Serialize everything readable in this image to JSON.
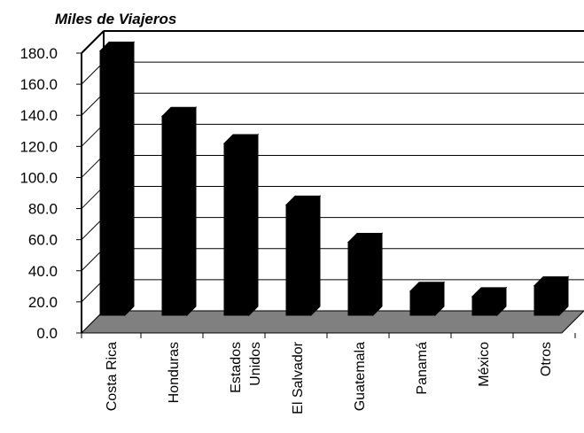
{
  "chart_data": {
    "type": "bar",
    "ylabel": "Miles de Viajeros",
    "xlabel": "",
    "categories": [
      [
        "Costa Rica"
      ],
      [
        "Honduras"
      ],
      [
        "Estados",
        "Unidos"
      ],
      [
        "El Salvador"
      ],
      [
        "Guatemala"
      ],
      [
        "Panamá"
      ],
      [
        "México"
      ],
      [
        "Otros"
      ]
    ],
    "values": [
      170.0,
      128.0,
      110.5,
      71.0,
      47.0,
      15.5,
      12.0,
      19.0
    ],
    "ylim": [
      0,
      180
    ],
    "yticks": [
      "0.0",
      "20.0",
      "40.0",
      "60.0",
      "80.0",
      "100.0",
      "120.0",
      "140.0",
      "160.0",
      "180.0"
    ],
    "grid": true,
    "legend": "none",
    "colors": {
      "bar": "#000000",
      "floor": "#808080",
      "grid": "#000000"
    }
  }
}
